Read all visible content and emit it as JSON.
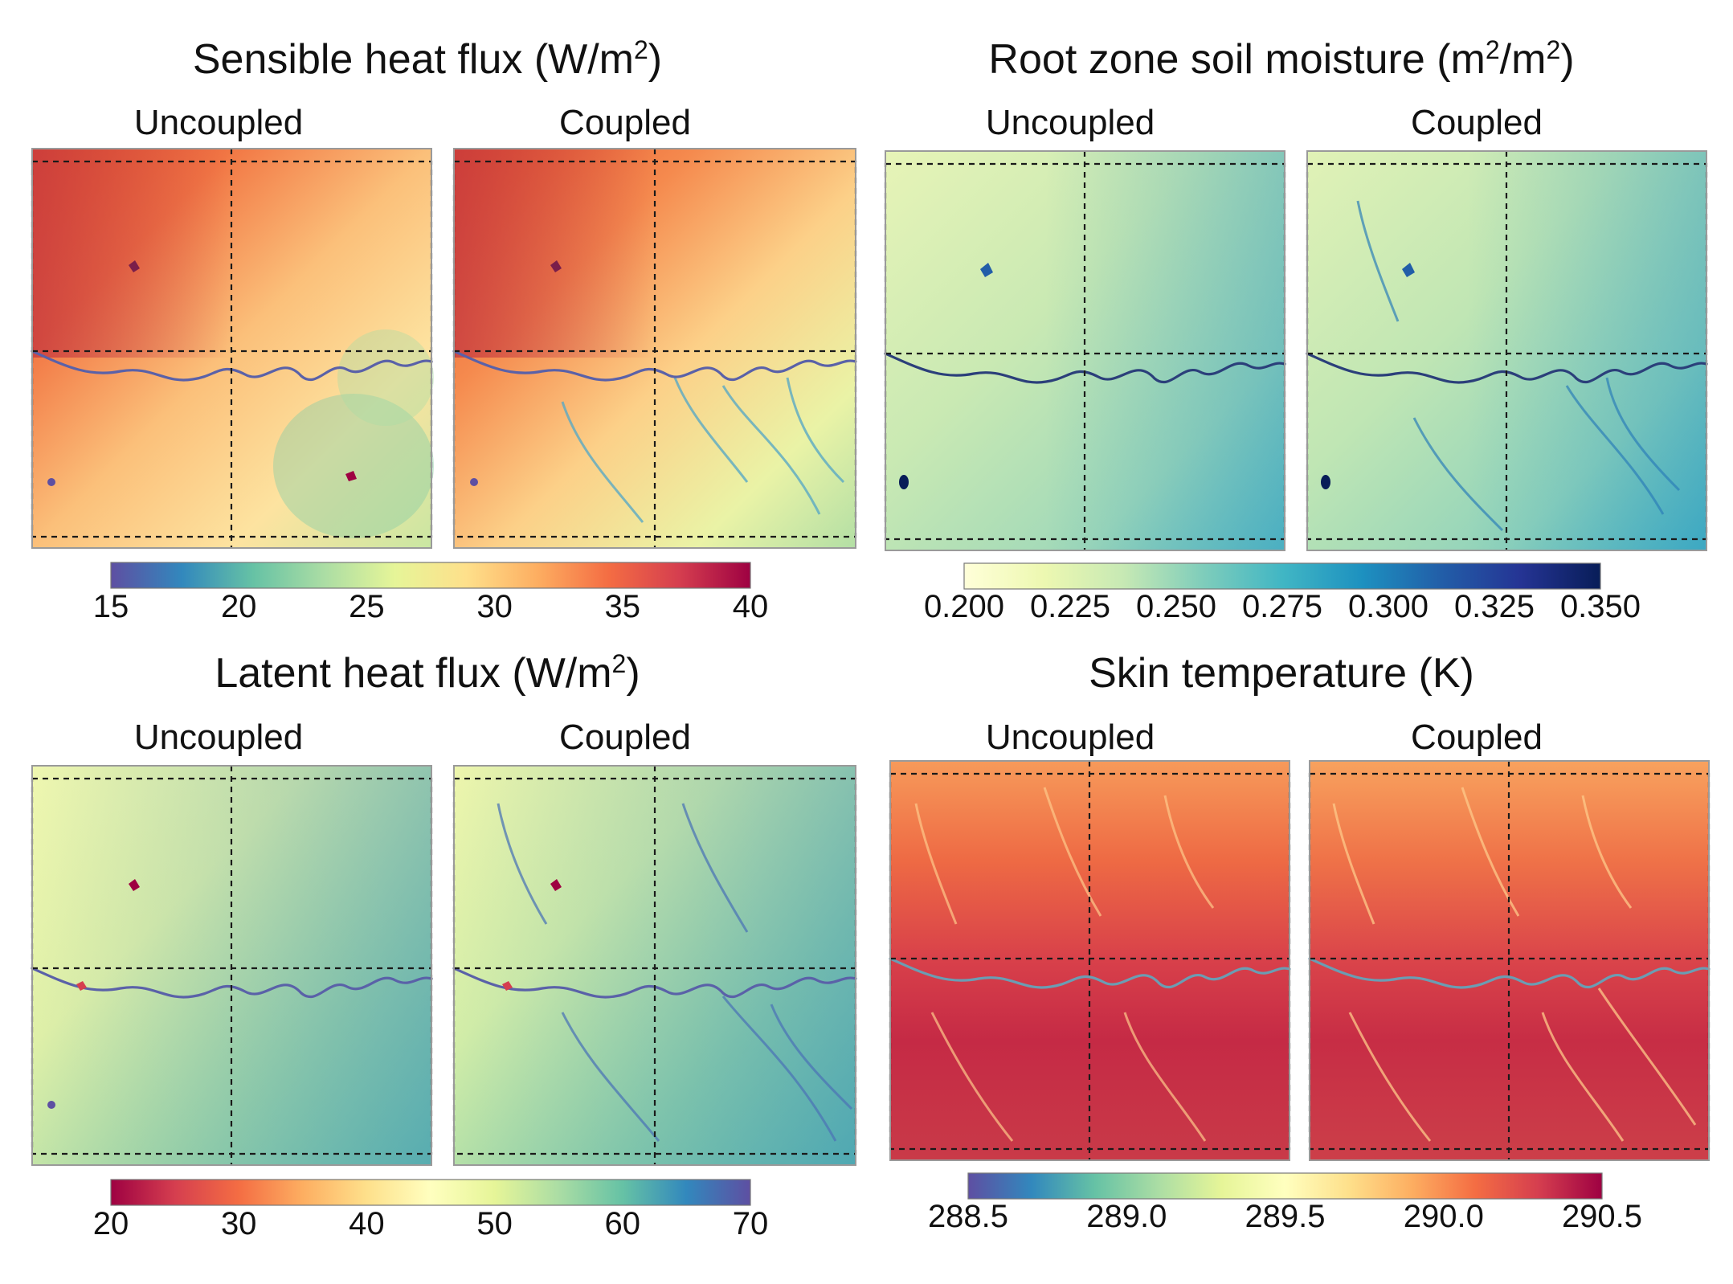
{
  "chart_data": [
    {
      "type": "heatmap",
      "title_main": "Sensible heat flux (W/m",
      "title_sup": "2",
      "title_end": ")",
      "maps": [
        "Uncoupled",
        "Coupled"
      ],
      "colorbar": {
        "ticks": [
          "15",
          "20",
          "25",
          "30",
          "35",
          "40"
        ],
        "range": [
          15,
          40
        ],
        "colors": [
          "#5e4fa2",
          "#3288bd",
          "#66c2a5",
          "#abdda4",
          "#e6f598",
          "#fee08b",
          "#fdae61",
          "#f46d43",
          "#d53e4f",
          "#9e0142"
        ]
      }
    },
    {
      "type": "heatmap",
      "title_main": "Root zone soil moisture (m",
      "title_sup": "2",
      "title_mid": "/m",
      "title_sup2": "2",
      "title_end": ")",
      "maps": [
        "Uncoupled",
        "Coupled"
      ],
      "colorbar": {
        "ticks": [
          "0.200",
          "0.225",
          "0.250",
          "0.275",
          "0.300",
          "0.325",
          "0.350"
        ],
        "range": [
          0.2,
          0.35
        ],
        "colors": [
          "#ffffd9",
          "#edf8b1",
          "#c7e9b4",
          "#7fcdbb",
          "#41b6c4",
          "#1d91c0",
          "#225ea8",
          "#253494",
          "#081d58"
        ]
      }
    },
    {
      "type": "heatmap",
      "title_main": "Latent heat flux (W/m",
      "title_sup": "2",
      "title_end": ")",
      "maps": [
        "Uncoupled",
        "Coupled"
      ],
      "colorbar": {
        "ticks": [
          "20",
          "30",
          "40",
          "50",
          "60",
          "70"
        ],
        "range": [
          20,
          70
        ],
        "colors": [
          "#9e0142",
          "#d53e4f",
          "#f46d43",
          "#fdae61",
          "#fee08b",
          "#ffffbf",
          "#e6f598",
          "#abdda4",
          "#66c2a5",
          "#3288bd",
          "#5e4fa2"
        ]
      }
    },
    {
      "type": "heatmap",
      "title_main": "Skin temperature (K)",
      "maps": [
        "Uncoupled",
        "Coupled"
      ],
      "colorbar": {
        "ticks": [
          "288.5",
          "289.0",
          "289.5",
          "290.0",
          "290.5"
        ],
        "range": [
          288.5,
          290.5
        ],
        "colors": [
          "#5e4fa2",
          "#3288bd",
          "#66c2a5",
          "#abdda4",
          "#e6f598",
          "#ffffbf",
          "#fee08b",
          "#fdae61",
          "#f46d43",
          "#d53e4f",
          "#9e0142"
        ]
      }
    }
  ]
}
